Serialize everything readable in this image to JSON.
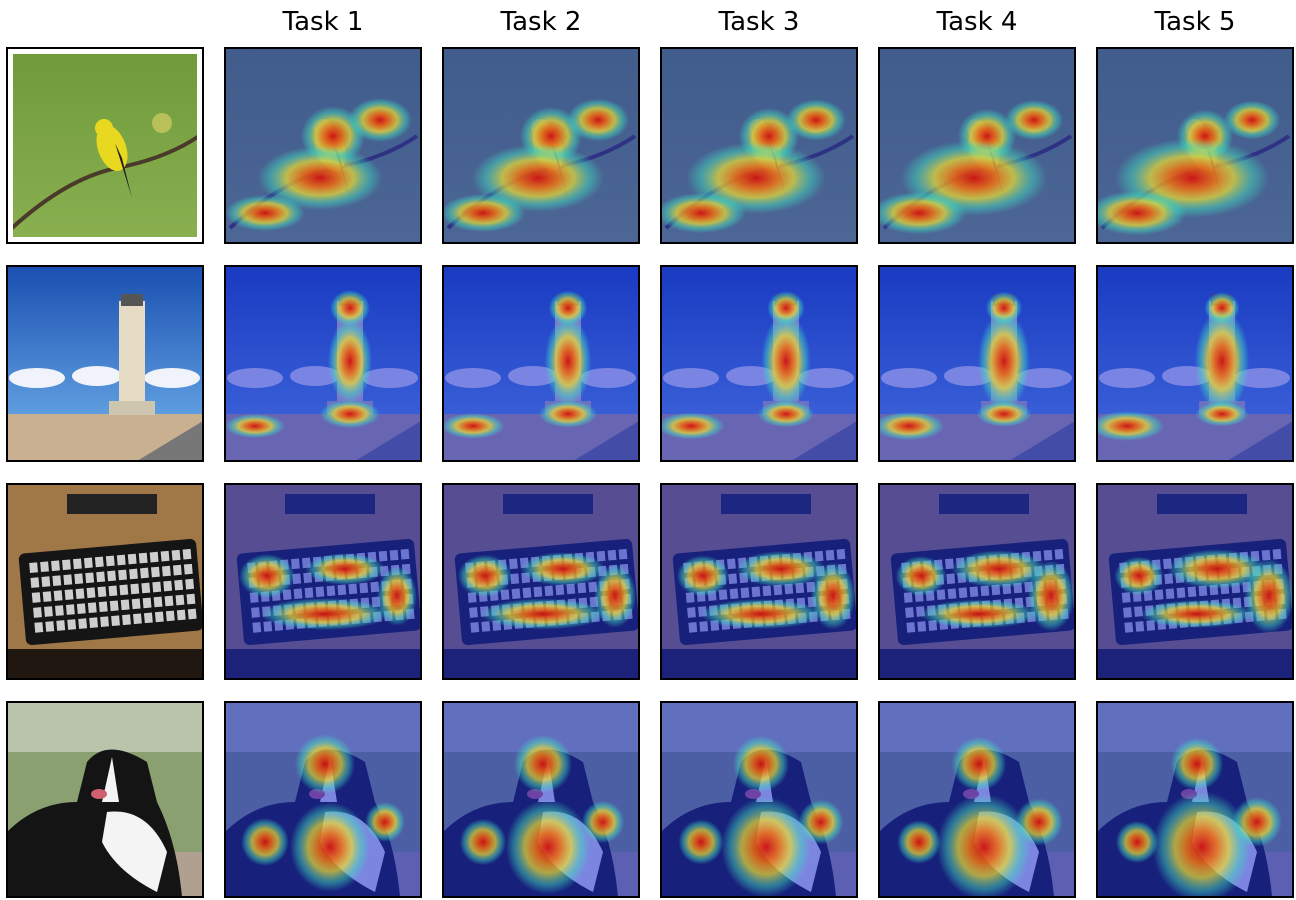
{
  "columns": [
    "Task 1",
    "Task 2",
    "Task 3",
    "Task 4",
    "Task 5"
  ]
}
